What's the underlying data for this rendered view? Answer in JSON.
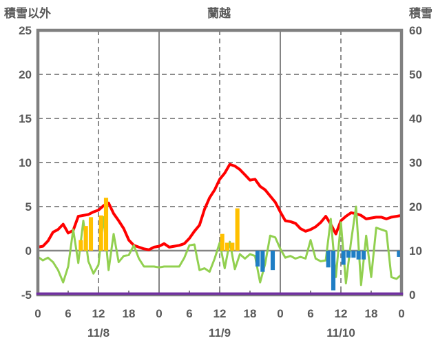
{
  "title": "蘭越",
  "chart_data": {
    "type": "line+bar",
    "title": "蘭越",
    "left_axis": {
      "title": "積雪以外",
      "ticks": [
        25,
        20,
        15,
        10,
        5,
        0,
        -5
      ],
      "range": [
        -5,
        25
      ]
    },
    "right_axis": {
      "title": "積雪",
      "ticks": [
        60,
        50,
        40,
        30,
        20,
        10,
        0
      ],
      "range": [
        0,
        60
      ]
    },
    "x_axis": {
      "hours_total": 72,
      "tick_interval_hours": 6,
      "hour_tick_labels": [
        "0",
        "6",
        "12",
        "18",
        "0",
        "6",
        "12",
        "18",
        "0",
        "6",
        "12",
        "18",
        "0"
      ],
      "date_labels": [
        {
          "label": "11/8",
          "hour": 12
        },
        {
          "label": "11/9",
          "hour": 36
        },
        {
          "label": "11/10",
          "hour": 60
        }
      ],
      "midnight_hours": [
        24,
        48
      ],
      "noon_hours": [
        12,
        36,
        60
      ]
    },
    "grid": {
      "frame_color": "#808080",
      "solid_line_color": "#848484",
      "dashed_line_color": "#8c8c8c",
      "dashed_levels_left": [
        20,
        15,
        10,
        5
      ],
      "zero_line_left": 0,
      "legend": "none"
    },
    "series": [
      {
        "name": "red-line",
        "type": "line",
        "axis": "left",
        "color": "#ff0000",
        "width": 4,
        "values": [
          0.4,
          0.5,
          1.1,
          2.1,
          2.4,
          3.0,
          2.0,
          2.3,
          3.9,
          4.0,
          4.1,
          4.4,
          4.6,
          5.1,
          5.4,
          4.2,
          3.4,
          2.5,
          1.2,
          0.6,
          0.4,
          0.2,
          0.1,
          0.4,
          0.5,
          0.8,
          0.4,
          0.5,
          0.6,
          0.8,
          1.4,
          2.2,
          2.9,
          4.7,
          6.0,
          6.9,
          8.1,
          8.8,
          9.8,
          9.6,
          9.2,
          8.6,
          8.0,
          8.1,
          7.3,
          6.9,
          6.2,
          5.5,
          4.4,
          3.4,
          3.3,
          3.1,
          2.5,
          2.2,
          2.4,
          2.7,
          3.2,
          3.9,
          3.0,
          1.9,
          3.4,
          3.9,
          4.3,
          4.2,
          4.0,
          3.6,
          3.7,
          3.8,
          3.8,
          3.6,
          3.8,
          3.9,
          4.0
        ]
      },
      {
        "name": "green-line",
        "type": "line",
        "axis": "left",
        "color": "#92d050",
        "width": 3,
        "values": [
          -0.7,
          -1.1,
          -0.8,
          -1.3,
          -2.2,
          -3.6,
          -1.8,
          2.4,
          -1.4,
          3.4,
          -1.2,
          -2.6,
          -1.6,
          3.8,
          -2.2,
          1.9,
          -1.3,
          -0.6,
          -0.5,
          0.6,
          -0.9,
          -1.8,
          -1.8,
          -1.8,
          -1.9,
          -1.8,
          -1.8,
          -1.8,
          -1.8,
          -0.8,
          0.6,
          0.7,
          -2.2,
          -2.0,
          -2.4,
          -0.9,
          0.9,
          -2.0,
          1.0,
          -2.1,
          -0.4,
          -0.9,
          -0.4,
          -0.6,
          -3.6,
          -1.5,
          1.7,
          1.5,
          0.2,
          -0.8,
          -0.6,
          -0.9,
          -0.7,
          -0.9,
          1.2,
          -0.9,
          -1.2,
          -1.1,
          3.6,
          -3.0,
          3.2,
          -3.7,
          1.0,
          5.0,
          -3.9,
          1.7,
          -3.0,
          2.6,
          2.4,
          2.2,
          -3.0,
          -3.2,
          -2.7
        ]
      },
      {
        "name": "yellow-bars",
        "type": "bar",
        "axis": "left",
        "color": "#ffc000",
        "bars": [
          {
            "hour": 8,
            "value": 1.2
          },
          {
            "hour": 9,
            "value": 2.8
          },
          {
            "hour": 10,
            "value": 3.8
          },
          {
            "hour": 12,
            "value": 4.0
          },
          {
            "hour": 13,
            "value": 6.0
          },
          {
            "hour": 36,
            "value": 1.9
          },
          {
            "hour": 37,
            "value": 0.9
          },
          {
            "hour": 38,
            "value": 0.9
          },
          {
            "hour": 39,
            "value": 4.8
          }
        ]
      },
      {
        "name": "blue-bars",
        "type": "bar",
        "axis": "left",
        "color": "#1f7ec5",
        "bars": [
          {
            "hour": 43,
            "value": -1.8
          },
          {
            "hour": 44,
            "value": -2.4
          },
          {
            "hour": 46,
            "value": -2.2
          },
          {
            "hour": 57,
            "value": -1.9
          },
          {
            "hour": 58,
            "value": -4.5
          },
          {
            "hour": 60,
            "value": -1.6
          },
          {
            "hour": 61,
            "value": -0.8
          },
          {
            "hour": 62,
            "value": -0.8
          },
          {
            "hour": 63,
            "value": -1.0
          },
          {
            "hour": 64,
            "value": -1.0
          },
          {
            "hour": 71,
            "value": -0.7
          }
        ]
      },
      {
        "name": "purple-line",
        "type": "constant-line",
        "axis": "right",
        "color": "#7030a0",
        "width": 3.5,
        "constant_value": 0
      }
    ]
  }
}
